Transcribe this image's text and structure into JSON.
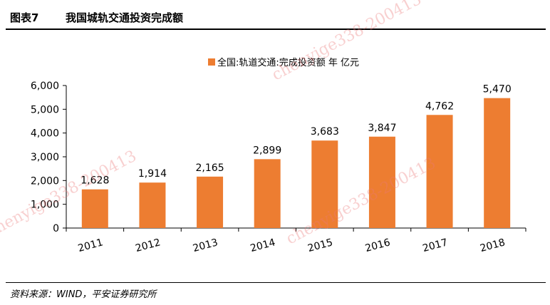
{
  "figure": {
    "number": "图表7",
    "title": "我国城轨交通投资完成额"
  },
  "source": "资料来源：WIND，平安证券研究所",
  "watermark": "chenyige338-200413",
  "colors": {
    "bar": "#ED7D31",
    "axis": "#000000"
  },
  "chart_data": {
    "type": "bar",
    "categories": [
      "2011",
      "2012",
      "2013",
      "2014",
      "2015",
      "2016",
      "2017",
      "2018"
    ],
    "series": [
      {
        "name": "全国:轨道交通:完成投资额 年 亿元",
        "values": [
          1628,
          1914,
          2165,
          2899,
          3683,
          3847,
          4762,
          5470
        ]
      }
    ],
    "data_labels": [
      "1,628",
      "1,914",
      "2,165",
      "2,899",
      "3,683",
      "3,847",
      "4,762",
      "5,470"
    ],
    "y_ticks": [
      "0",
      "1,000",
      "2,000",
      "3,000",
      "4,000",
      "5,000",
      "6,000"
    ],
    "ylim": [
      0,
      6000
    ],
    "legend_position": "top-center",
    "grid": false
  }
}
